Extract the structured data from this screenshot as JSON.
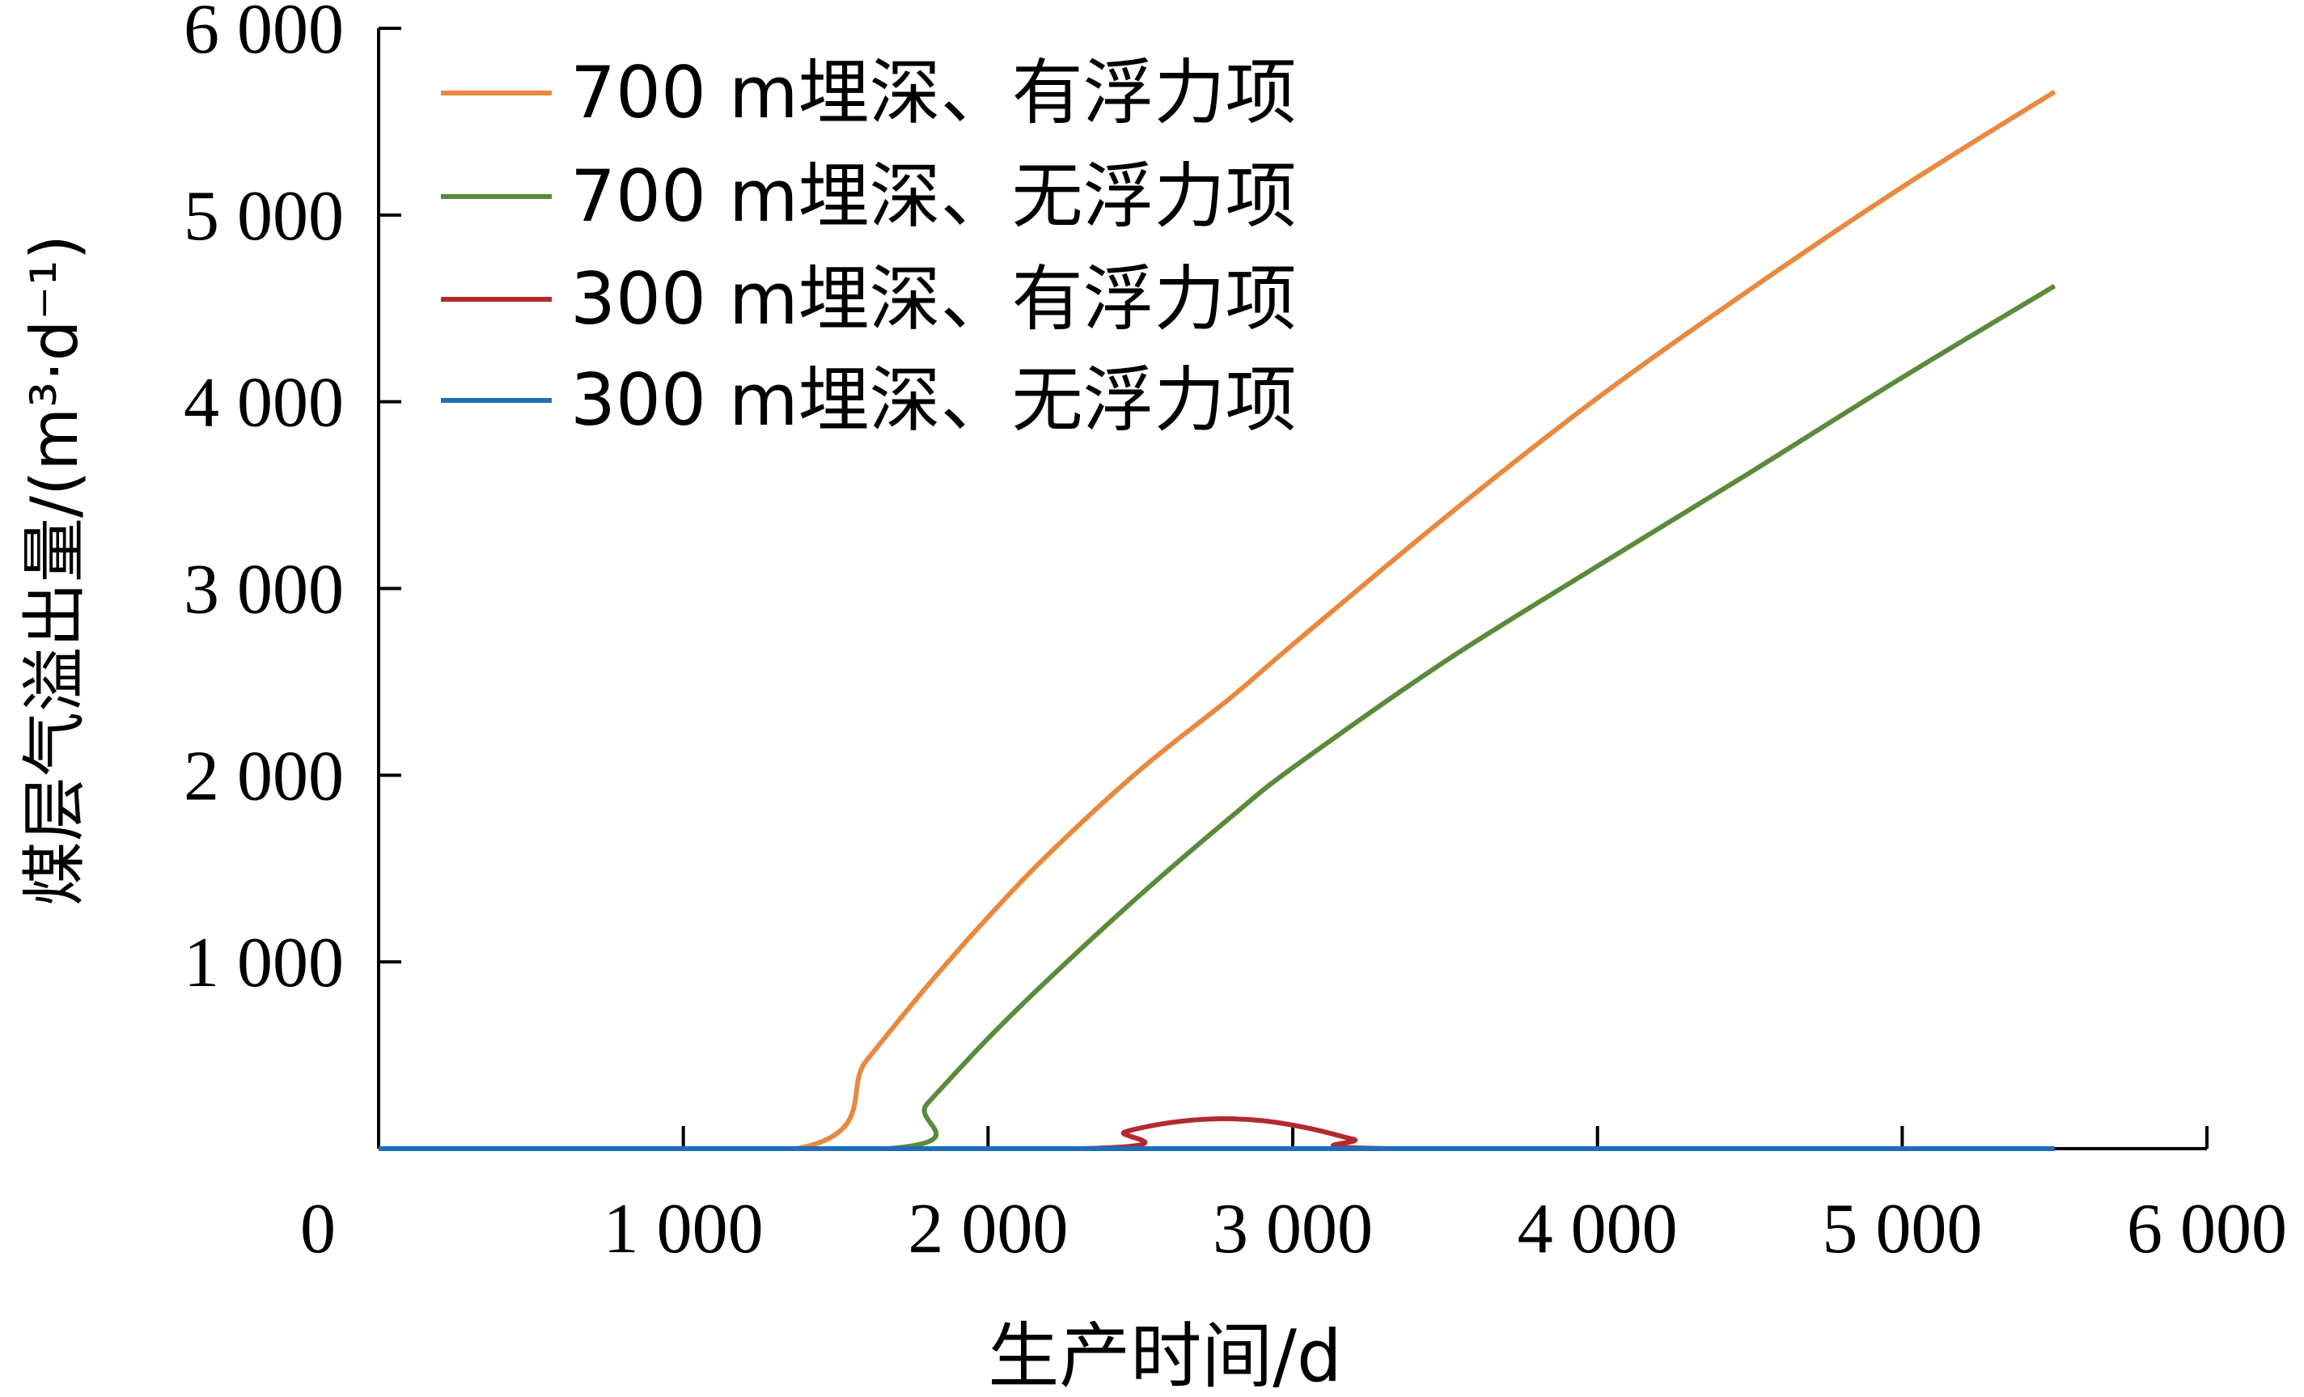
{
  "chart_data": {
    "type": "line",
    "xlabel": "生产时间/d",
    "ylabel": "煤层气溢出量/(m³·d⁻¹)",
    "xlim": [
      0,
      6000
    ],
    "ylim": [
      0,
      6000
    ],
    "x_ticks": [
      0,
      1000,
      2000,
      3000,
      4000,
      5000,
      6000
    ],
    "y_ticks": [
      1000,
      2000,
      3000,
      4000,
      5000,
      6000
    ],
    "x_tick_labels": [
      "0",
      "1 000",
      "2 000",
      "3 000",
      "4 000",
      "5 000",
      "6 000"
    ],
    "y_tick_labels": [
      "1 000",
      "2 000",
      "3 000",
      "4 000",
      "5 000",
      "6 000"
    ],
    "grid": false,
    "legend_position": "top-left",
    "series": [
      {
        "name": "700 m埋深、有浮力项",
        "color": "#E8893F",
        "x": [
          0,
          1370,
          1600,
          1800,
          2000,
          2200,
          2500,
          2800,
          3000,
          3500,
          4000,
          4500,
          5000,
          5500
        ],
        "y": [
          0,
          0,
          470,
          870,
          1240,
          1580,
          2030,
          2420,
          2700,
          3380,
          4020,
          4600,
          5150,
          5660
        ]
      },
      {
        "name": "700 m埋深、无浮力项",
        "color": "#5A8B3A",
        "x": [
          0,
          1670,
          1800,
          2000,
          2200,
          2500,
          2800,
          3000,
          3500,
          4000,
          4500,
          5000,
          5500
        ],
        "y": [
          0,
          0,
          240,
          590,
          910,
          1360,
          1780,
          2040,
          2610,
          3120,
          3620,
          4130,
          4620
        ]
      },
      {
        "name": "300 m埋深、有浮力项",
        "color": "#B22A2E",
        "x": [
          0,
          2300,
          2450,
          2600,
          2750,
          2900,
          3050,
          3200,
          3330,
          5500
        ],
        "y": [
          0,
          0,
          90,
          140,
          160,
          150,
          110,
          50,
          0,
          0
        ]
      },
      {
        "name": "300 m埋深、无浮力项",
        "color": "#1F6DB5",
        "x": [
          0,
          5500
        ],
        "y": [
          0,
          0
        ]
      }
    ]
  }
}
